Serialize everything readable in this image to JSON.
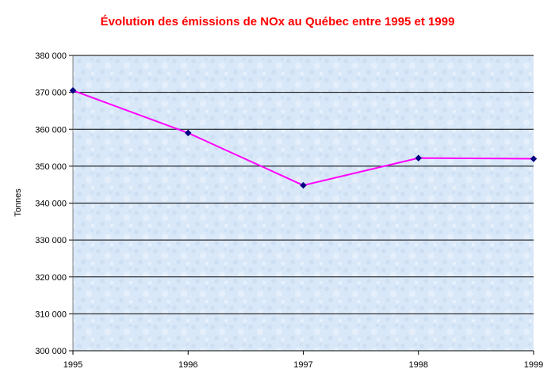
{
  "colors": {
    "title": "#ff0000",
    "line": "#ff00ff",
    "marker": "#000080",
    "plot_background": "#d6e6f7",
    "grid": "#000000"
  },
  "chart_data": {
    "type": "line",
    "title": "Évolution des émissions de NOx au Québec entre 1995 et 1999",
    "xlabel": "",
    "ylabel": "Tonnes",
    "categories": [
      "1995",
      "1996",
      "1997",
      "1998",
      "1999"
    ],
    "series": [
      {
        "values": [
          370500,
          359000,
          344800,
          352200,
          352000
        ]
      }
    ],
    "ylim": [
      300000,
      380000
    ],
    "ytick_step": 10000,
    "ytick_labels": [
      "300 000",
      "310 000",
      "320 000",
      "330 000",
      "340 000",
      "350 000",
      "360 000",
      "370 000",
      "380 000"
    ],
    "grid": "horizontal",
    "legend": "none",
    "marker": "diamond"
  }
}
